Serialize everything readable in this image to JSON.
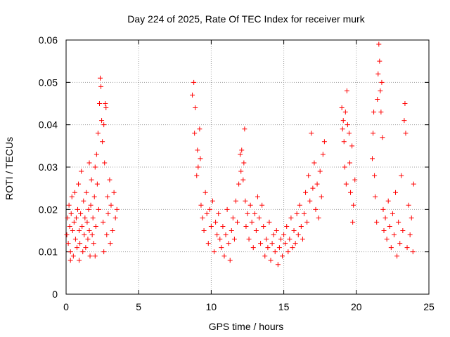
{
  "chart_data": {
    "type": "scatter",
    "title": "Day 224 of 2025, Rate Of TEC Index for receiver murk",
    "xlabel": "GPS time / hours",
    "ylabel": "ROTI / TECUs",
    "xlim": [
      0,
      25
    ],
    "ylim": [
      0,
      0.06
    ],
    "x_ticks": [
      0,
      5,
      10,
      15,
      20,
      25
    ],
    "x_tick_labels": [
      "0",
      "5",
      "10",
      "15",
      "20",
      "25"
    ],
    "y_ticks": [
      0,
      0.01,
      0.02,
      0.03,
      0.04,
      0.05,
      0.06
    ],
    "y_tick_labels": [
      "0",
      "0.01",
      "0.02",
      "0.03",
      "0.04",
      "0.05",
      "0.06"
    ],
    "grid": true,
    "marker": "+",
    "color": "#ff0000",
    "series": [
      {
        "points": [
          [
            0.05,
            0.014
          ],
          [
            0.1,
            0.018
          ],
          [
            0.15,
            0.012
          ],
          [
            0.2,
            0.021
          ],
          [
            0.25,
            0.016
          ],
          [
            0.3,
            0.01
          ],
          [
            0.35,
            0.019
          ],
          [
            0.4,
            0.023
          ],
          [
            0.45,
            0.015
          ],
          [
            0.5,
            0.009
          ],
          [
            0.55,
            0.017
          ],
          [
            0.6,
            0.024
          ],
          [
            0.65,
            0.013
          ],
          [
            0.7,
            0.018
          ],
          [
            0.75,
            0.011
          ],
          [
            0.8,
            0.02
          ],
          [
            0.85,
            0.026
          ],
          [
            0.9,
            0.015
          ],
          [
            0.95,
            0.012
          ],
          [
            1.0,
            0.019
          ],
          [
            1.05,
            0.029
          ],
          [
            1.1,
            0.016
          ],
          [
            1.15,
            0.01
          ],
          [
            1.2,
            0.022
          ],
          [
            1.25,
            0.014
          ],
          [
            1.3,
            0.018
          ],
          [
            1.35,
            0.011
          ],
          [
            1.4,
            0.024
          ],
          [
            1.45,
            0.017
          ],
          [
            1.5,
            0.013
          ],
          [
            1.55,
            0.02
          ],
          [
            1.6,
            0.015
          ],
          [
            1.65,
            0.009
          ],
          [
            1.7,
            0.021
          ],
          [
            1.75,
            0.027
          ],
          [
            1.8,
            0.014
          ],
          [
            1.85,
            0.018
          ],
          [
            1.9,
            0.012
          ],
          [
            1.95,
            0.023
          ],
          [
            2.0,
            0.03
          ],
          [
            2.05,
            0.016
          ],
          [
            2.1,
            0.033
          ],
          [
            2.15,
            0.026
          ],
          [
            2.2,
            0.038
          ],
          [
            2.25,
            0.02
          ],
          [
            2.3,
            0.045
          ],
          [
            2.35,
            0.051
          ],
          [
            2.4,
            0.049
          ],
          [
            2.45,
            0.041
          ],
          [
            2.5,
            0.036
          ],
          [
            2.55,
            0.017
          ],
          [
            2.6,
            0.04
          ],
          [
            2.65,
            0.031
          ],
          [
            2.7,
            0.045
          ],
          [
            2.75,
            0.044
          ],
          [
            2.8,
            0.014
          ],
          [
            2.85,
            0.023
          ],
          [
            2.9,
            0.019
          ],
          [
            3.0,
            0.027
          ],
          [
            3.05,
            0.012
          ],
          [
            3.1,
            0.021
          ],
          [
            3.2,
            0.015
          ],
          [
            3.3,
            0.024
          ],
          [
            3.4,
            0.018
          ],
          [
            3.5,
            0.02
          ],
          [
            0.3,
            0.008
          ],
          [
            0.9,
            0.008
          ],
          [
            1.6,
            0.031
          ],
          [
            2.0,
            0.009
          ],
          [
            2.6,
            0.01
          ],
          [
            8.7,
            0.047
          ],
          [
            8.8,
            0.05
          ],
          [
            8.85,
            0.038
          ],
          [
            8.9,
            0.044
          ],
          [
            9.0,
            0.028
          ],
          [
            9.05,
            0.034
          ],
          [
            9.1,
            0.03
          ],
          [
            9.2,
            0.039
          ],
          [
            9.25,
            0.032
          ],
          [
            9.3,
            0.021
          ],
          [
            9.4,
            0.018
          ],
          [
            9.5,
            0.015
          ],
          [
            9.6,
            0.024
          ],
          [
            9.7,
            0.019
          ],
          [
            9.8,
            0.012
          ],
          [
            9.9,
            0.02
          ],
          [
            10.0,
            0.016
          ],
          [
            10.1,
            0.022
          ],
          [
            10.2,
            0.01
          ],
          [
            10.3,
            0.017
          ],
          [
            10.4,
            0.014
          ],
          [
            10.5,
            0.019
          ],
          [
            10.6,
            0.013
          ],
          [
            10.7,
            0.011
          ],
          [
            10.8,
            0.016
          ],
          [
            10.9,
            0.009
          ],
          [
            11.0,
            0.014
          ],
          [
            11.1,
            0.02
          ],
          [
            11.2,
            0.012
          ],
          [
            11.3,
            0.008
          ],
          [
            11.4,
            0.015
          ],
          [
            11.5,
            0.018
          ],
          [
            11.6,
            0.013
          ],
          [
            11.7,
            0.022
          ],
          [
            11.8,
            0.017
          ],
          [
            11.9,
            0.026
          ],
          [
            12.0,
            0.033
          ],
          [
            12.05,
            0.029
          ],
          [
            12.1,
            0.034
          ],
          [
            12.2,
            0.027
          ],
          [
            12.25,
            0.031
          ],
          [
            12.3,
            0.039
          ],
          [
            12.35,
            0.022
          ],
          [
            12.4,
            0.016
          ],
          [
            12.5,
            0.019
          ],
          [
            12.6,
            0.013
          ],
          [
            12.7,
            0.021
          ],
          [
            12.8,
            0.017
          ],
          [
            12.9,
            0.011
          ],
          [
            13.0,
            0.019
          ],
          [
            13.1,
            0.015
          ],
          [
            13.2,
            0.023
          ],
          [
            13.3,
            0.018
          ],
          [
            13.4,
            0.012
          ],
          [
            13.5,
            0.021
          ],
          [
            13.6,
            0.016
          ],
          [
            13.7,
            0.009
          ],
          [
            13.8,
            0.013
          ],
          [
            13.9,
            0.011
          ],
          [
            14.0,
            0.017
          ],
          [
            14.1,
            0.008
          ],
          [
            14.2,
            0.012
          ],
          [
            14.3,
            0.014
          ],
          [
            14.4,
            0.01
          ],
          [
            14.5,
            0.015
          ],
          [
            14.6,
            0.007
          ],
          [
            14.7,
            0.011
          ],
          [
            14.8,
            0.013
          ],
          [
            14.9,
            0.009
          ],
          [
            15.0,
            0.014
          ],
          [
            15.1,
            0.012
          ],
          [
            15.2,
            0.016
          ],
          [
            15.3,
            0.01
          ],
          [
            15.4,
            0.013
          ],
          [
            15.5,
            0.018
          ],
          [
            15.6,
            0.011
          ],
          [
            15.7,
            0.015
          ],
          [
            15.8,
            0.012
          ],
          [
            15.9,
            0.019
          ],
          [
            16.0,
            0.014
          ],
          [
            16.1,
            0.021
          ],
          [
            16.2,
            0.016
          ],
          [
            16.3,
            0.013
          ],
          [
            16.4,
            0.019
          ],
          [
            16.5,
            0.024
          ],
          [
            16.6,
            0.017
          ],
          [
            16.7,
            0.028
          ],
          [
            16.8,
            0.022
          ],
          [
            16.9,
            0.038
          ],
          [
            17.0,
            0.025
          ],
          [
            17.1,
            0.031
          ],
          [
            17.2,
            0.02
          ],
          [
            17.3,
            0.026
          ],
          [
            17.4,
            0.018
          ],
          [
            17.5,
            0.029
          ],
          [
            17.6,
            0.023
          ],
          [
            17.7,
            0.033
          ],
          [
            17.8,
            0.036
          ],
          [
            19.0,
            0.044
          ],
          [
            19.05,
            0.039
          ],
          [
            19.1,
            0.041
          ],
          [
            19.15,
            0.036
          ],
          [
            19.2,
            0.03
          ],
          [
            19.25,
            0.043
          ],
          [
            19.3,
            0.026
          ],
          [
            19.35,
            0.048
          ],
          [
            19.4,
            0.04
          ],
          [
            19.5,
            0.038
          ],
          [
            19.55,
            0.031
          ],
          [
            19.6,
            0.024
          ],
          [
            19.7,
            0.035
          ],
          [
            19.75,
            0.017
          ],
          [
            19.8,
            0.021
          ],
          [
            19.9,
            0.027
          ],
          [
            21.1,
            0.032
          ],
          [
            21.15,
            0.038
          ],
          [
            21.2,
            0.043
          ],
          [
            21.25,
            0.028
          ],
          [
            21.3,
            0.023
          ],
          [
            21.4,
            0.017
          ],
          [
            21.45,
            0.046
          ],
          [
            21.5,
            0.052
          ],
          [
            21.55,
            0.059
          ],
          [
            21.6,
            0.055
          ],
          [
            21.65,
            0.048
          ],
          [
            21.7,
            0.043
          ],
          [
            21.75,
            0.05
          ],
          [
            21.8,
            0.037
          ],
          [
            21.85,
            0.02
          ],
          [
            21.9,
            0.015
          ],
          [
            22.0,
            0.018
          ],
          [
            22.1,
            0.013
          ],
          [
            22.2,
            0.022
          ],
          [
            22.3,
            0.016
          ],
          [
            22.4,
            0.011
          ],
          [
            22.5,
            0.019
          ],
          [
            22.6,
            0.014
          ],
          [
            22.7,
            0.024
          ],
          [
            22.8,
            0.009
          ],
          [
            22.9,
            0.017
          ],
          [
            23.0,
            0.012
          ],
          [
            23.1,
            0.028
          ],
          [
            23.2,
            0.015
          ],
          [
            23.3,
            0.041
          ],
          [
            23.35,
            0.045
          ],
          [
            23.4,
            0.038
          ],
          [
            23.5,
            0.011
          ],
          [
            23.6,
            0.021
          ],
          [
            23.7,
            0.014
          ],
          [
            23.8,
            0.018
          ],
          [
            23.9,
            0.01
          ],
          [
            23.95,
            0.026
          ]
        ]
      }
    ]
  }
}
